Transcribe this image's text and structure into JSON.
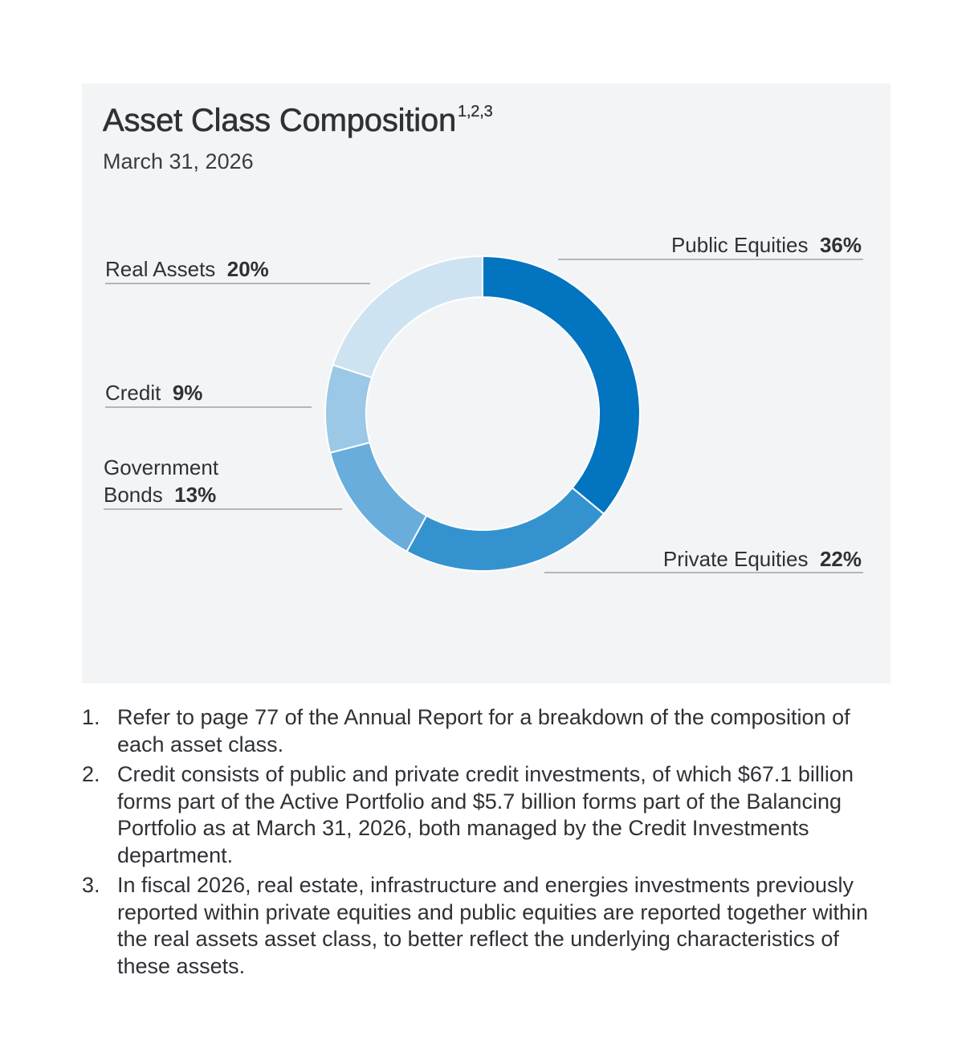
{
  "header": {
    "title": "Asset Class Composition",
    "title_sup": "1,2,3",
    "subtitle": "March 31, 2026"
  },
  "chart_data": {
    "type": "pie",
    "variant": "donut",
    "title": "Asset Class Composition",
    "subtitle": "March 31, 2026",
    "unit": "%",
    "slices": [
      {
        "name": "Public Equities",
        "lines": [
          "Public Equities"
        ],
        "value": 36,
        "label": "36%",
        "color": "#0274c0"
      },
      {
        "name": "Private Equities",
        "lines": [
          "Private Equities"
        ],
        "value": 22,
        "label": "22%",
        "color": "#3493cf"
      },
      {
        "name": "Government Bonds",
        "lines": [
          "Government",
          "Bonds"
        ],
        "value": 13,
        "label": "13%",
        "color": "#68addc"
      },
      {
        "name": "Credit",
        "lines": [
          "Credit"
        ],
        "value": 9,
        "label": "9%",
        "color": "#9ac8e6"
      },
      {
        "name": "Real Assets",
        "lines": [
          "Real Assets"
        ],
        "value": 20,
        "label": "20%",
        "color": "#cde3f2"
      }
    ]
  },
  "colors": {
    "panel_background": "#f3f4f5",
    "leader_line": "#8e9196",
    "text": "#2e3136"
  },
  "footnotes": [
    {
      "num": "1.",
      "text": "Refer to page 77 of the Annual Report for a breakdown of the composition of each asset class."
    },
    {
      "num": "2.",
      "text": "Credit consists of public and private credit investments, of which $67.1 billion forms part of the Active Portfolio and $5.7 billion forms part of the Balancing Portfolio as at March 31, 2026, both managed by the Credit Investments department."
    },
    {
      "num": "3.",
      "text": "In fiscal 2026, real estate, infrastructure and energies investments previously reported within private equities and public equities are reported together within the real assets asset class, to better reflect the underlying characteristics of these assets."
    }
  ]
}
